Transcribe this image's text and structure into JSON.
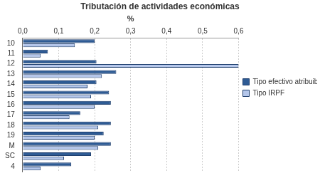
{
  "chart_data": {
    "type": "bar",
    "title": "Tributación de actividades económicas",
    "orientation": "horizontal",
    "x_label": "%",
    "categories": [
      "10",
      "11",
      "12",
      "13",
      "14",
      "15",
      "16",
      "17",
      "18",
      "19",
      "M",
      "SC",
      "4"
    ],
    "series": [
      {
        "name": "Tipo efectivo atribuible",
        "color": "#2e5b94",
        "values": [
          0.2,
          0.07,
          0.205,
          0.26,
          0.205,
          0.24,
          0.245,
          0.16,
          0.245,
          0.225,
          0.245,
          0.19,
          0.135
        ]
      },
      {
        "name": "Tipo IRPF",
        "color": "#b4c6ea",
        "values": [
          0.145,
          0.05,
          0.6,
          0.22,
          0.18,
          0.19,
          0.2,
          0.13,
          0.21,
          0.2,
          0.21,
          0.115,
          0.05
        ]
      }
    ],
    "xlim": [
      0,
      0.6
    ],
    "xticks": [
      {
        "value": 0,
        "label": "0,0"
      },
      {
        "value": 0.1,
        "label": "0,1"
      },
      {
        "value": 0.2,
        "label": "0,2"
      },
      {
        "value": 0.3,
        "label": "0,3"
      },
      {
        "value": 0.4,
        "label": "0,4"
      },
      {
        "value": 0.5,
        "label": "0,5"
      },
      {
        "value": 0.6,
        "label": "0,6"
      }
    ],
    "grid": true,
    "legend": "right"
  }
}
